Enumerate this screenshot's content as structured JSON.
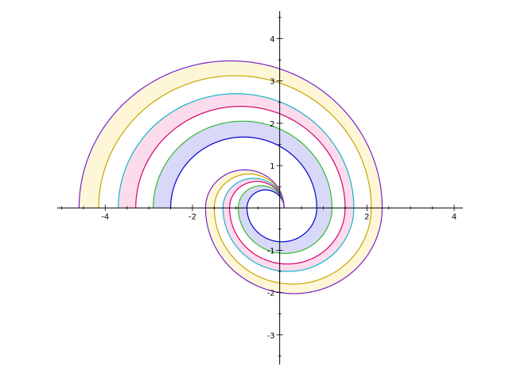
{
  "chart_data": {
    "type": "line",
    "title": "",
    "xlabel": "",
    "ylabel": "",
    "xlim": [
      -5.1,
      4.2
    ],
    "ylim": [
      -3.7,
      4.65
    ],
    "axes": "cross at origin",
    "grid": false,
    "x_ticks": [
      -4,
      -2,
      2,
      4
    ],
    "y_ticks": [
      -3,
      -2,
      -1,
      1,
      2,
      3,
      4
    ],
    "curve_type": "spiral of semicircular arcs (upper half centred at origin, lower half centred at x = -0.5)",
    "bands": [
      {
        "fill": "#d8d8f8",
        "inner": {
          "color": "#0000cc",
          "upper_radii": [
            0.75,
            2.5
          ],
          "lower_radii": [
            1.35
          ]
        },
        "outer": {
          "color": "#33bb33",
          "upper_radii": [
            0.95,
            2.9
          ],
          "lower_radii": [
            1.7
          ]
        }
      },
      {
        "fill": "#fcdcec",
        "inner": {
          "color": "#d6006b",
          "upper_radii": [
            1.15,
            3.3
          ],
          "lower_radii": [
            2.0
          ]
        },
        "outer": {
          "color": "#16b4c8",
          "upper_radii": [
            1.3,
            3.7
          ],
          "lower_radii": [
            2.2
          ]
        }
      },
      {
        "fill": "#fdf7d8",
        "inner": {
          "color": "#c8a400",
          "upper_radii": [
            1.5,
            4.15
          ],
          "lower_radii": [
            2.6
          ]
        },
        "outer": {
          "color": "#7722cc",
          "upper_radii": [
            1.7,
            4.6
          ],
          "lower_radii": [
            2.85
          ]
        }
      }
    ]
  }
}
